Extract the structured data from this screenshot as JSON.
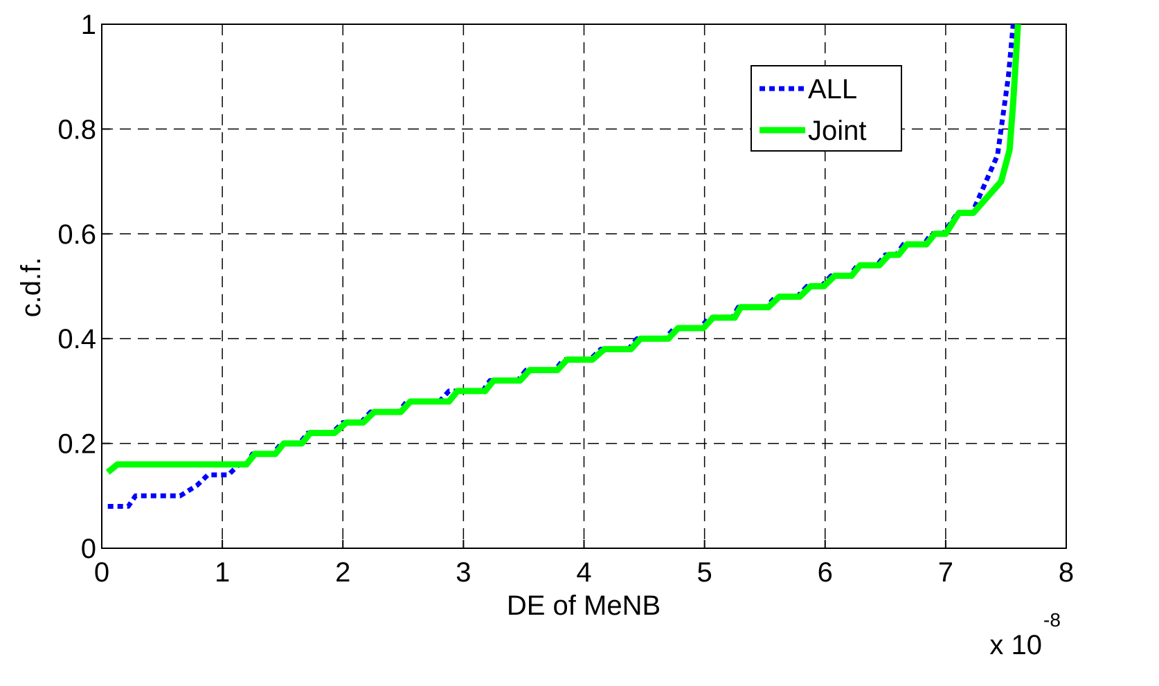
{
  "chart_data": {
    "type": "line",
    "xlabel": "DE of MeNB",
    "ylabel": "c.d.f.",
    "x_multiplier": {
      "base": "x 10",
      "exponent": "-8"
    },
    "xlim": [
      0,
      8
    ],
    "xticks": [
      0,
      1,
      2,
      3,
      4,
      5,
      6,
      7,
      8
    ],
    "ylim": [
      0,
      1
    ],
    "yticks": [
      0,
      0.2,
      0.4,
      0.6,
      0.8,
      1
    ],
    "grid": true,
    "legend": "upper right",
    "series": [
      {
        "name": "ALL",
        "color": "#0000ff",
        "style": "dotted",
        "x": [
          0.05,
          0.22,
          0.28,
          0.65,
          0.79,
          0.88,
          1.05,
          1.14,
          1.2,
          1.25,
          1.42,
          1.49,
          1.64,
          1.71,
          1.91,
          2.0,
          2.15,
          2.23,
          2.46,
          2.53,
          2.8,
          2.88,
          3.16,
          3.22,
          3.45,
          3.52,
          3.76,
          3.83,
          4.05,
          4.14,
          4.37,
          4.44,
          4.67,
          4.75,
          4.96,
          5.04,
          5.23,
          5.28,
          5.51,
          5.59,
          5.77,
          5.85,
          5.97,
          6.05,
          6.2,
          6.27,
          6.43,
          6.5,
          6.59,
          6.65,
          6.82,
          6.88,
          6.98,
          7.1,
          7.22,
          7.43,
          7.52,
          7.56
        ],
        "values": [
          0.08,
          0.08,
          0.1,
          0.1,
          0.12,
          0.14,
          0.14,
          0.16,
          0.16,
          0.18,
          0.18,
          0.2,
          0.2,
          0.22,
          0.22,
          0.24,
          0.24,
          0.26,
          0.26,
          0.28,
          0.28,
          0.3,
          0.3,
          0.32,
          0.32,
          0.34,
          0.34,
          0.36,
          0.36,
          0.38,
          0.38,
          0.4,
          0.4,
          0.42,
          0.42,
          0.44,
          0.44,
          0.46,
          0.46,
          0.48,
          0.48,
          0.5,
          0.5,
          0.52,
          0.52,
          0.54,
          0.54,
          0.56,
          0.56,
          0.58,
          0.58,
          0.6,
          0.6,
          0.64,
          0.64,
          0.75,
          0.9,
          1.0
        ]
      },
      {
        "name": "Joint",
        "color": "#00ff00",
        "style": "solid",
        "x": [
          0.05,
          0.13,
          1.2,
          1.27,
          1.44,
          1.51,
          1.66,
          1.73,
          1.93,
          2.03,
          2.17,
          2.26,
          2.48,
          2.56,
          2.88,
          2.95,
          3.18,
          3.25,
          3.47,
          3.55,
          3.78,
          3.86,
          4.07,
          4.17,
          4.39,
          4.47,
          4.7,
          4.78,
          4.99,
          5.07,
          5.25,
          5.3,
          5.53,
          5.62,
          5.79,
          5.88,
          5.99,
          6.08,
          6.22,
          6.29,
          6.45,
          6.53,
          6.61,
          6.68,
          6.84,
          6.91,
          7.0,
          7.11,
          7.23,
          7.46,
          7.53,
          7.56,
          7.6
        ],
        "values": [
          0.145,
          0.16,
          0.16,
          0.18,
          0.18,
          0.2,
          0.2,
          0.22,
          0.22,
          0.24,
          0.24,
          0.26,
          0.26,
          0.28,
          0.28,
          0.3,
          0.3,
          0.32,
          0.32,
          0.34,
          0.34,
          0.36,
          0.36,
          0.38,
          0.38,
          0.4,
          0.4,
          0.42,
          0.42,
          0.44,
          0.44,
          0.46,
          0.46,
          0.48,
          0.48,
          0.5,
          0.5,
          0.52,
          0.52,
          0.54,
          0.54,
          0.56,
          0.56,
          0.58,
          0.58,
          0.6,
          0.6,
          0.64,
          0.64,
          0.7,
          0.76,
          0.85,
          1.0
        ]
      }
    ]
  }
}
